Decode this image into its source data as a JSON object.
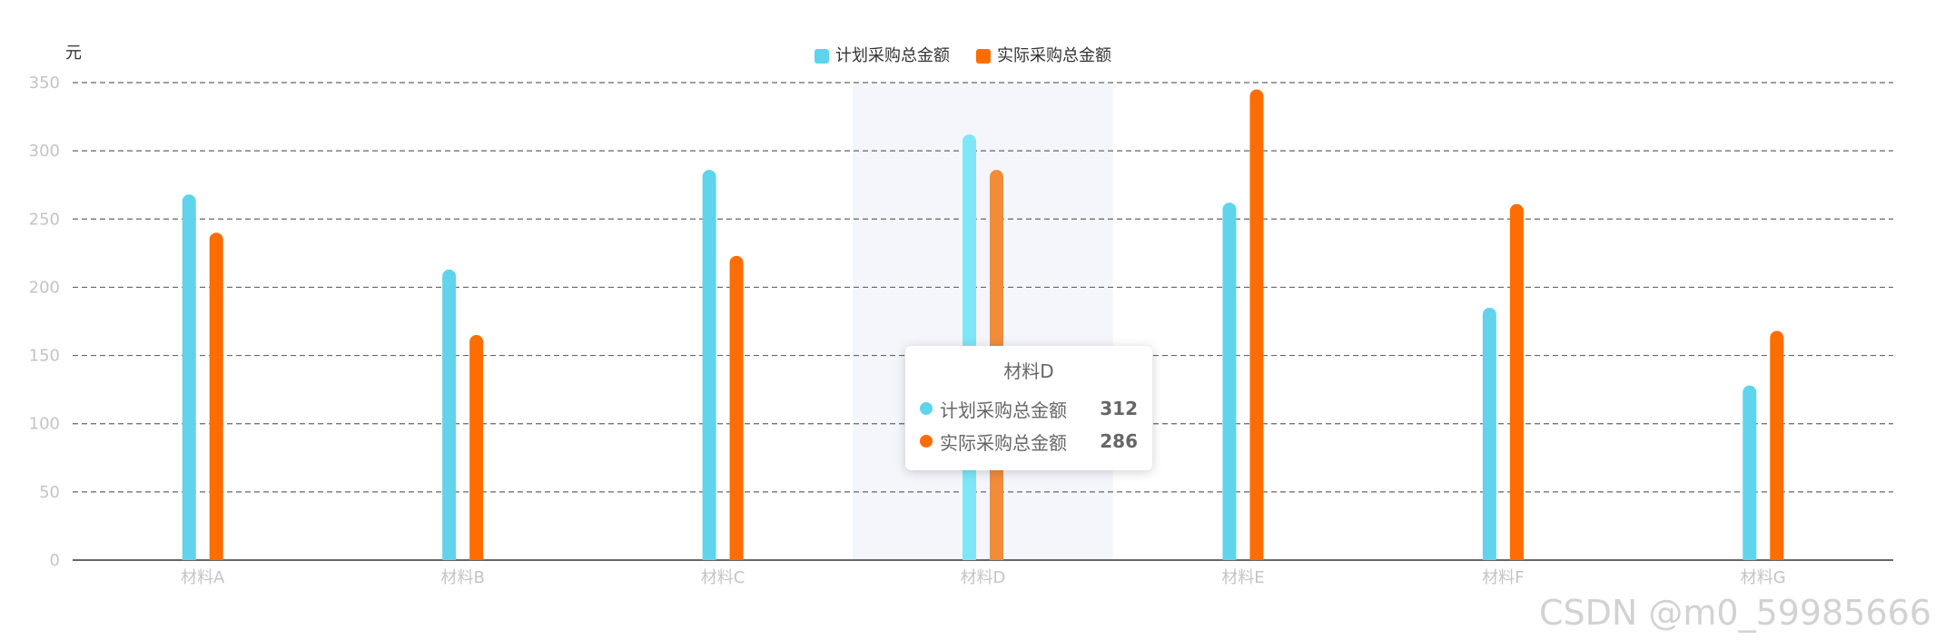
{
  "chart_data": {
    "type": "bar",
    "unit_label": "元",
    "categories": [
      "材料A",
      "材料B",
      "材料C",
      "材料D",
      "材料E",
      "材料F",
      "材料G"
    ],
    "series": [
      {
        "name": "计划采购总金额",
        "color": "#5fd4ec",
        "values": [
          268,
          213,
          286,
          312,
          262,
          185,
          128
        ]
      },
      {
        "name": "实际采购总金额",
        "color": "#ff6d00",
        "values": [
          240,
          165,
          223,
          286,
          345,
          261,
          168
        ]
      }
    ],
    "ylim": [
      0,
      350
    ],
    "yticks": [
      0,
      50,
      100,
      150,
      200,
      250,
      300,
      350
    ],
    "grid": true,
    "legend_position": "top-center",
    "highlight_color": "#f4f6fb",
    "highlight_index": 3,
    "tooltip": {
      "title": "材料D",
      "rows": [
        {
          "name": "计划采购总金额",
          "value": "312",
          "color": "#5fd4ec"
        },
        {
          "name": "实际采购总金额",
          "value": "286",
          "color": "#ff6d00"
        }
      ]
    }
  },
  "watermark": "CSDN @m0_59985666"
}
